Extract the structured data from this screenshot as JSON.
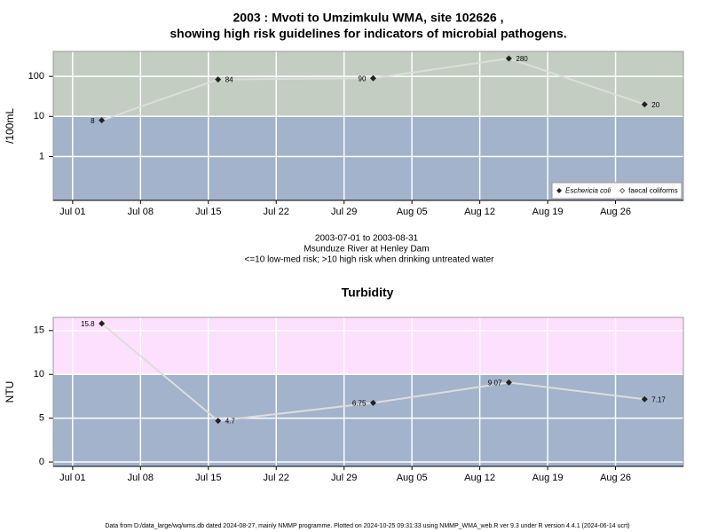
{
  "chart_data": [
    {
      "type": "line",
      "title": "2003 : Mvoti to Umzimkulu WMA, site 102626 ,",
      "subtitle": "showing high risk guidelines for indicators of microbial pathogens.",
      "ylabel": "/100mL",
      "log_scale": true,
      "x": [
        "2003-07-04",
        "2003-07-16",
        "2003-08-01",
        "2003-08-15",
        "2003-08-29"
      ],
      "xlim": [
        "2003-06-29",
        "2003-09-02"
      ],
      "xticks": [
        {
          "value": "2003-07-01",
          "label": "Jul 01"
        },
        {
          "value": "2003-07-08",
          "label": "Jul 08"
        },
        {
          "value": "2003-07-15",
          "label": "Jul 15"
        },
        {
          "value": "2003-07-22",
          "label": "Jul 22"
        },
        {
          "value": "2003-07-29",
          "label": "Jul 29"
        },
        {
          "value": "2003-08-05",
          "label": "Aug 05"
        },
        {
          "value": "2003-08-12",
          "label": "Aug 12"
        },
        {
          "value": "2003-08-19",
          "label": "Aug 19"
        },
        {
          "value": "2003-08-26",
          "label": "Aug 26"
        }
      ],
      "ylim": [
        0.08,
        420
      ],
      "yticks": [
        1,
        10,
        100
      ],
      "threshold": 10,
      "above_color": "#c3cdc1",
      "below_color": "#a2b3cb",
      "line_color": "#dddddd",
      "grid": true,
      "series": [
        {
          "name": "Eschericia coli",
          "color": "#222222",
          "values": [
            8,
            84,
            90,
            280,
            20
          ]
        },
        {
          "name": "faecal coliforms",
          "color": "#ffffff"
        }
      ],
      "legend": "bottom-right",
      "notes": [
        "2003-07-01 to 2003-08-31",
        "Msunduze River at Henley Dam",
        "<=10 low-med risk; >10 high risk when drinking untreated water"
      ]
    },
    {
      "type": "line",
      "title": "Turbidity",
      "ylabel": "NTU",
      "log_scale": false,
      "x": [
        "2003-07-04",
        "2003-07-16",
        "2003-08-01",
        "2003-08-15",
        "2003-08-29"
      ],
      "xlim": [
        "2003-06-29",
        "2003-09-02"
      ],
      "xticks": [
        {
          "value": "2003-07-01",
          "label": "Jul 01"
        },
        {
          "value": "2003-07-08",
          "label": "Jul 08"
        },
        {
          "value": "2003-07-15",
          "label": "Jul 15"
        },
        {
          "value": "2003-07-22",
          "label": "Jul 22"
        },
        {
          "value": "2003-07-29",
          "label": "Jul 29"
        },
        {
          "value": "2003-08-05",
          "label": "Aug 05"
        },
        {
          "value": "2003-08-12",
          "label": "Aug 12"
        },
        {
          "value": "2003-08-19",
          "label": "Aug 19"
        },
        {
          "value": "2003-08-26",
          "label": "Aug 26"
        }
      ],
      "ylim": [
        -0.5,
        16.5
      ],
      "yticks": [
        0,
        5,
        10,
        15
      ],
      "threshold": 10,
      "above_color": "#fde0fd",
      "below_color": "#a2b3cb",
      "line_color": "#dddddd",
      "grid": true,
      "series": [
        {
          "name": "Turbidity",
          "color": "#222222",
          "values": [
            15.8,
            4.7,
            6.75,
            9.07,
            7.17
          ]
        }
      ]
    }
  ],
  "footer": "Data from D:/data_large/wq/wms.db dated 2024-08-27, mainly NMMP programme. Plotted on 2024-10-25 09:31:33 using NMMP_WMA_web.R ver 9.3 under R version 4.4.1 (2024-06-14 ucrt)"
}
